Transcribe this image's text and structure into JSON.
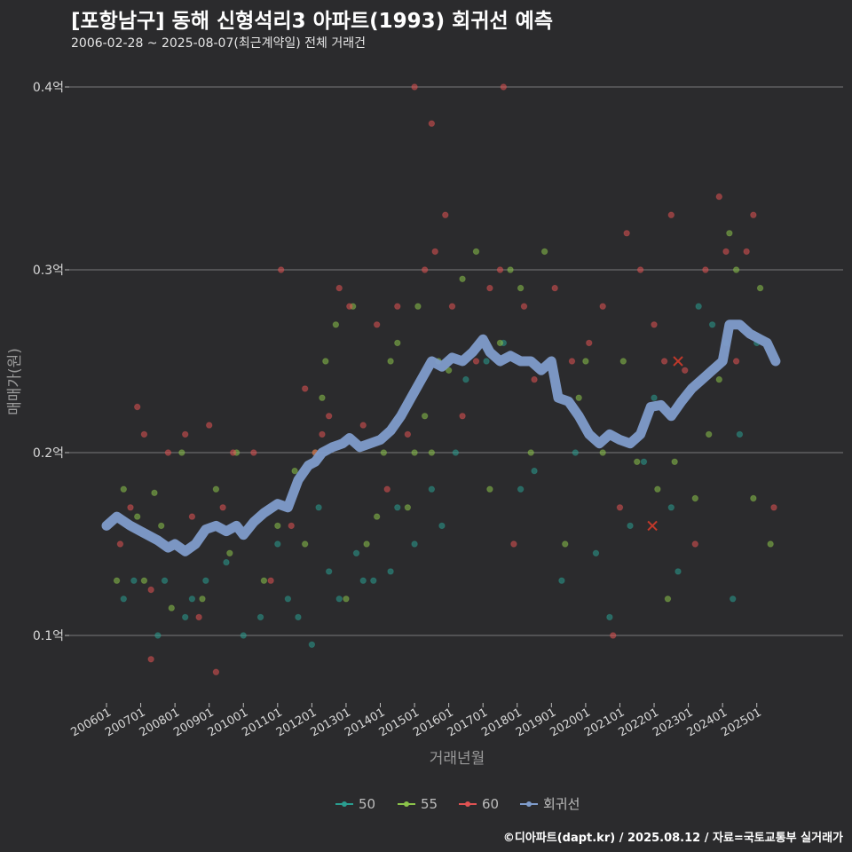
{
  "title": "[포항남구] 동해 신형석리3 아파트(1993) 회귀선 예측",
  "subtitle": "2006-02-28 ~ 2025-08-07(최근계약일) 전체 거래건",
  "footer": "©디아파트(dapt.kr) / 2025.08.12 / 자료=국토교통부 실거래가",
  "chart_data": {
    "type": "scatter",
    "xlabel": "거래년월",
    "ylabel": "매매가(원)",
    "x_range": [
      2006.0,
      2025.75
    ],
    "ylim": [
      0.065,
      0.41
    ],
    "x_ticks": [
      "200601",
      "200701",
      "200801",
      "200901",
      "201001",
      "201101",
      "201201",
      "201301",
      "201401",
      "201501",
      "201601",
      "201701",
      "201801",
      "201901",
      "202001",
      "202101",
      "202201",
      "202301",
      "202401",
      "202501"
    ],
    "y_ticks": [
      {
        "value": 0.1,
        "label": "0.1억"
      },
      {
        "value": 0.2,
        "label": "0.2억"
      },
      {
        "value": 0.3,
        "label": "0.3억"
      },
      {
        "value": 0.4,
        "label": "0.4억"
      }
    ],
    "grid": true,
    "legend_position": "bottom",
    "colors": {
      "50": "#2a9d8f",
      "55": "#8bc34a",
      "60": "#e05252",
      "regression": "#7f9ccb"
    },
    "series": [
      {
        "name": "50",
        "points": [
          [
            2006.5,
            0.12
          ],
          [
            2006.8,
            0.13
          ],
          [
            2007.5,
            0.1
          ],
          [
            2007.7,
            0.13
          ],
          [
            2008.3,
            0.11
          ],
          [
            2008.5,
            0.12
          ],
          [
            2008.9,
            0.13
          ],
          [
            2009.5,
            0.14
          ],
          [
            2010.0,
            0.1
          ],
          [
            2010.5,
            0.11
          ],
          [
            2011.0,
            0.15
          ],
          [
            2011.3,
            0.12
          ],
          [
            2011.6,
            0.11
          ],
          [
            2012.0,
            0.095
          ],
          [
            2012.2,
            0.17
          ],
          [
            2012.5,
            0.135
          ],
          [
            2012.8,
            0.12
          ],
          [
            2013.3,
            0.145
          ],
          [
            2013.5,
            0.13
          ],
          [
            2013.8,
            0.13
          ],
          [
            2014.3,
            0.135
          ],
          [
            2014.5,
            0.17
          ],
          [
            2015.0,
            0.15
          ],
          [
            2015.5,
            0.18
          ],
          [
            2015.8,
            0.16
          ],
          [
            2016.2,
            0.2
          ],
          [
            2016.5,
            0.24
          ],
          [
            2017.1,
            0.25
          ],
          [
            2017.6,
            0.26
          ],
          [
            2018.1,
            0.18
          ],
          [
            2018.5,
            0.19
          ],
          [
            2019.3,
            0.13
          ],
          [
            2019.7,
            0.2
          ],
          [
            2020.3,
            0.145
          ],
          [
            2020.7,
            0.11
          ],
          [
            2021.3,
            0.16
          ],
          [
            2021.7,
            0.195
          ],
          [
            2022.0,
            0.23
          ],
          [
            2022.5,
            0.17
          ],
          [
            2022.7,
            0.135
          ],
          [
            2023.3,
            0.28
          ],
          [
            2023.7,
            0.27
          ],
          [
            2024.1,
            0.26
          ],
          [
            2024.3,
            0.12
          ],
          [
            2024.5,
            0.21
          ],
          [
            2025.0,
            0.26
          ]
        ]
      },
      {
        "name": "55",
        "points": [
          [
            2006.3,
            0.13
          ],
          [
            2006.5,
            0.18
          ],
          [
            2006.9,
            0.165
          ],
          [
            2007.1,
            0.13
          ],
          [
            2007.4,
            0.178
          ],
          [
            2007.6,
            0.16
          ],
          [
            2007.9,
            0.115
          ],
          [
            2008.2,
            0.2
          ],
          [
            2008.8,
            0.12
          ],
          [
            2009.2,
            0.18
          ],
          [
            2009.6,
            0.145
          ],
          [
            2009.8,
            0.2
          ],
          [
            2010.6,
            0.13
          ],
          [
            2011.0,
            0.16
          ],
          [
            2011.5,
            0.19
          ],
          [
            2011.8,
            0.15
          ],
          [
            2012.1,
            0.2
          ],
          [
            2012.3,
            0.23
          ],
          [
            2012.4,
            0.25
          ],
          [
            2012.7,
            0.27
          ],
          [
            2013.0,
            0.12
          ],
          [
            2013.2,
            0.28
          ],
          [
            2013.6,
            0.15
          ],
          [
            2013.9,
            0.165
          ],
          [
            2014.1,
            0.2
          ],
          [
            2014.3,
            0.25
          ],
          [
            2014.5,
            0.26
          ],
          [
            2014.8,
            0.17
          ],
          [
            2015.0,
            0.2
          ],
          [
            2015.1,
            0.28
          ],
          [
            2015.3,
            0.22
          ],
          [
            2015.5,
            0.2
          ],
          [
            2015.7,
            0.25
          ],
          [
            2016.0,
            0.245
          ],
          [
            2016.4,
            0.295
          ],
          [
            2016.8,
            0.31
          ],
          [
            2017.2,
            0.18
          ],
          [
            2017.5,
            0.26
          ],
          [
            2017.8,
            0.3
          ],
          [
            2018.1,
            0.29
          ],
          [
            2018.4,
            0.2
          ],
          [
            2018.8,
            0.31
          ],
          [
            2019.4,
            0.15
          ],
          [
            2019.8,
            0.23
          ],
          [
            2020.0,
            0.25
          ],
          [
            2020.5,
            0.2
          ],
          [
            2021.1,
            0.25
          ],
          [
            2021.5,
            0.195
          ],
          [
            2022.1,
            0.18
          ],
          [
            2022.4,
            0.12
          ],
          [
            2022.6,
            0.195
          ],
          [
            2023.2,
            0.175
          ],
          [
            2023.6,
            0.21
          ],
          [
            2023.9,
            0.24
          ],
          [
            2024.2,
            0.32
          ],
          [
            2024.4,
            0.3
          ],
          [
            2024.9,
            0.175
          ],
          [
            2025.1,
            0.29
          ],
          [
            2025.4,
            0.15
          ]
        ]
      },
      {
        "name": "60",
        "points": [
          [
            2006.4,
            0.15
          ],
          [
            2006.7,
            0.17
          ],
          [
            2006.9,
            0.225
          ],
          [
            2007.1,
            0.21
          ],
          [
            2007.3,
            0.125
          ],
          [
            2007.3,
            0.087
          ],
          [
            2007.8,
            0.2
          ],
          [
            2008.3,
            0.21
          ],
          [
            2008.5,
            0.165
          ],
          [
            2008.7,
            0.11
          ],
          [
            2009.0,
            0.215
          ],
          [
            2009.2,
            0.08
          ],
          [
            2009.4,
            0.17
          ],
          [
            2009.7,
            0.2
          ],
          [
            2010.3,
            0.2
          ],
          [
            2010.8,
            0.13
          ],
          [
            2011.1,
            0.3
          ],
          [
            2011.4,
            0.16
          ],
          [
            2011.8,
            0.235
          ],
          [
            2012.1,
            0.2
          ],
          [
            2012.3,
            0.21
          ],
          [
            2012.5,
            0.22
          ],
          [
            2012.8,
            0.29
          ],
          [
            2013.1,
            0.28
          ],
          [
            2013.5,
            0.215
          ],
          [
            2013.9,
            0.27
          ],
          [
            2014.2,
            0.18
          ],
          [
            2014.5,
            0.28
          ],
          [
            2014.8,
            0.21
          ],
          [
            2015.0,
            0.4
          ],
          [
            2015.3,
            0.3
          ],
          [
            2015.5,
            0.38
          ],
          [
            2015.6,
            0.31
          ],
          [
            2015.9,
            0.33
          ],
          [
            2016.1,
            0.28
          ],
          [
            2016.4,
            0.22
          ],
          [
            2016.8,
            0.25
          ],
          [
            2017.2,
            0.29
          ],
          [
            2017.5,
            0.3
          ],
          [
            2017.6,
            0.4
          ],
          [
            2017.9,
            0.15
          ],
          [
            2018.2,
            0.28
          ],
          [
            2018.5,
            0.24
          ],
          [
            2019.1,
            0.29
          ],
          [
            2019.6,
            0.25
          ],
          [
            2020.1,
            0.26
          ],
          [
            2020.5,
            0.28
          ],
          [
            2020.8,
            0.1
          ],
          [
            2021.0,
            0.17
          ],
          [
            2021.2,
            0.32
          ],
          [
            2021.6,
            0.3
          ],
          [
            2022.0,
            0.27
          ],
          [
            2022.3,
            0.25
          ],
          [
            2022.5,
            0.33
          ],
          [
            2022.9,
            0.245
          ],
          [
            2023.2,
            0.15
          ],
          [
            2023.5,
            0.3
          ],
          [
            2023.9,
            0.34
          ],
          [
            2024.1,
            0.31
          ],
          [
            2024.4,
            0.25
          ],
          [
            2024.7,
            0.31
          ],
          [
            2024.9,
            0.33
          ],
          [
            2025.5,
            0.17
          ]
        ]
      }
    ],
    "regression": {
      "name": "회귀선",
      "points": [
        [
          2006.0,
          0.16
        ],
        [
          2006.3,
          0.165
        ],
        [
          2006.7,
          0.16
        ],
        [
          2007.0,
          0.157
        ],
        [
          2007.5,
          0.152
        ],
        [
          2007.8,
          0.148
        ],
        [
          2008.0,
          0.15
        ],
        [
          2008.3,
          0.146
        ],
        [
          2008.6,
          0.15
        ],
        [
          2008.9,
          0.158
        ],
        [
          2009.2,
          0.16
        ],
        [
          2009.5,
          0.157
        ],
        [
          2009.8,
          0.16
        ],
        [
          2010.0,
          0.155
        ],
        [
          2010.3,
          0.162
        ],
        [
          2010.6,
          0.167
        ],
        [
          2011.0,
          0.172
        ],
        [
          2011.3,
          0.17
        ],
        [
          2011.6,
          0.185
        ],
        [
          2011.9,
          0.193
        ],
        [
          2012.1,
          0.195
        ],
        [
          2012.3,
          0.2
        ],
        [
          2012.6,
          0.203
        ],
        [
          2012.9,
          0.205
        ],
        [
          2013.1,
          0.208
        ],
        [
          2013.4,
          0.203
        ],
        [
          2013.7,
          0.205
        ],
        [
          2014.0,
          0.207
        ],
        [
          2014.3,
          0.212
        ],
        [
          2014.6,
          0.22
        ],
        [
          2014.9,
          0.23
        ],
        [
          2015.2,
          0.24
        ],
        [
          2015.5,
          0.25
        ],
        [
          2015.8,
          0.247
        ],
        [
          2016.1,
          0.252
        ],
        [
          2016.4,
          0.25
        ],
        [
          2016.7,
          0.255
        ],
        [
          2017.0,
          0.262
        ],
        [
          2017.2,
          0.255
        ],
        [
          2017.5,
          0.25
        ],
        [
          2017.8,
          0.253
        ],
        [
          2018.1,
          0.25
        ],
        [
          2018.4,
          0.25
        ],
        [
          2018.7,
          0.245
        ],
        [
          2019.0,
          0.25
        ],
        [
          2019.2,
          0.23
        ],
        [
          2019.5,
          0.228
        ],
        [
          2019.8,
          0.22
        ],
        [
          2020.1,
          0.21
        ],
        [
          2020.4,
          0.205
        ],
        [
          2020.7,
          0.21
        ],
        [
          2021.0,
          0.207
        ],
        [
          2021.3,
          0.205
        ],
        [
          2021.6,
          0.21
        ],
        [
          2021.9,
          0.225
        ],
        [
          2022.2,
          0.226
        ],
        [
          2022.5,
          0.22
        ],
        [
          2022.8,
          0.228
        ],
        [
          2023.1,
          0.235
        ],
        [
          2023.4,
          0.24
        ],
        [
          2023.7,
          0.245
        ],
        [
          2024.0,
          0.25
        ],
        [
          2024.2,
          0.27
        ],
        [
          2024.5,
          0.27
        ],
        [
          2024.8,
          0.265
        ],
        [
          2025.1,
          0.262
        ],
        [
          2025.3,
          0.26
        ],
        [
          2025.55,
          0.25
        ]
      ]
    },
    "highlighted": [
      [
        2021.95,
        0.16
      ],
      [
        2022.7,
        0.25
      ]
    ]
  }
}
